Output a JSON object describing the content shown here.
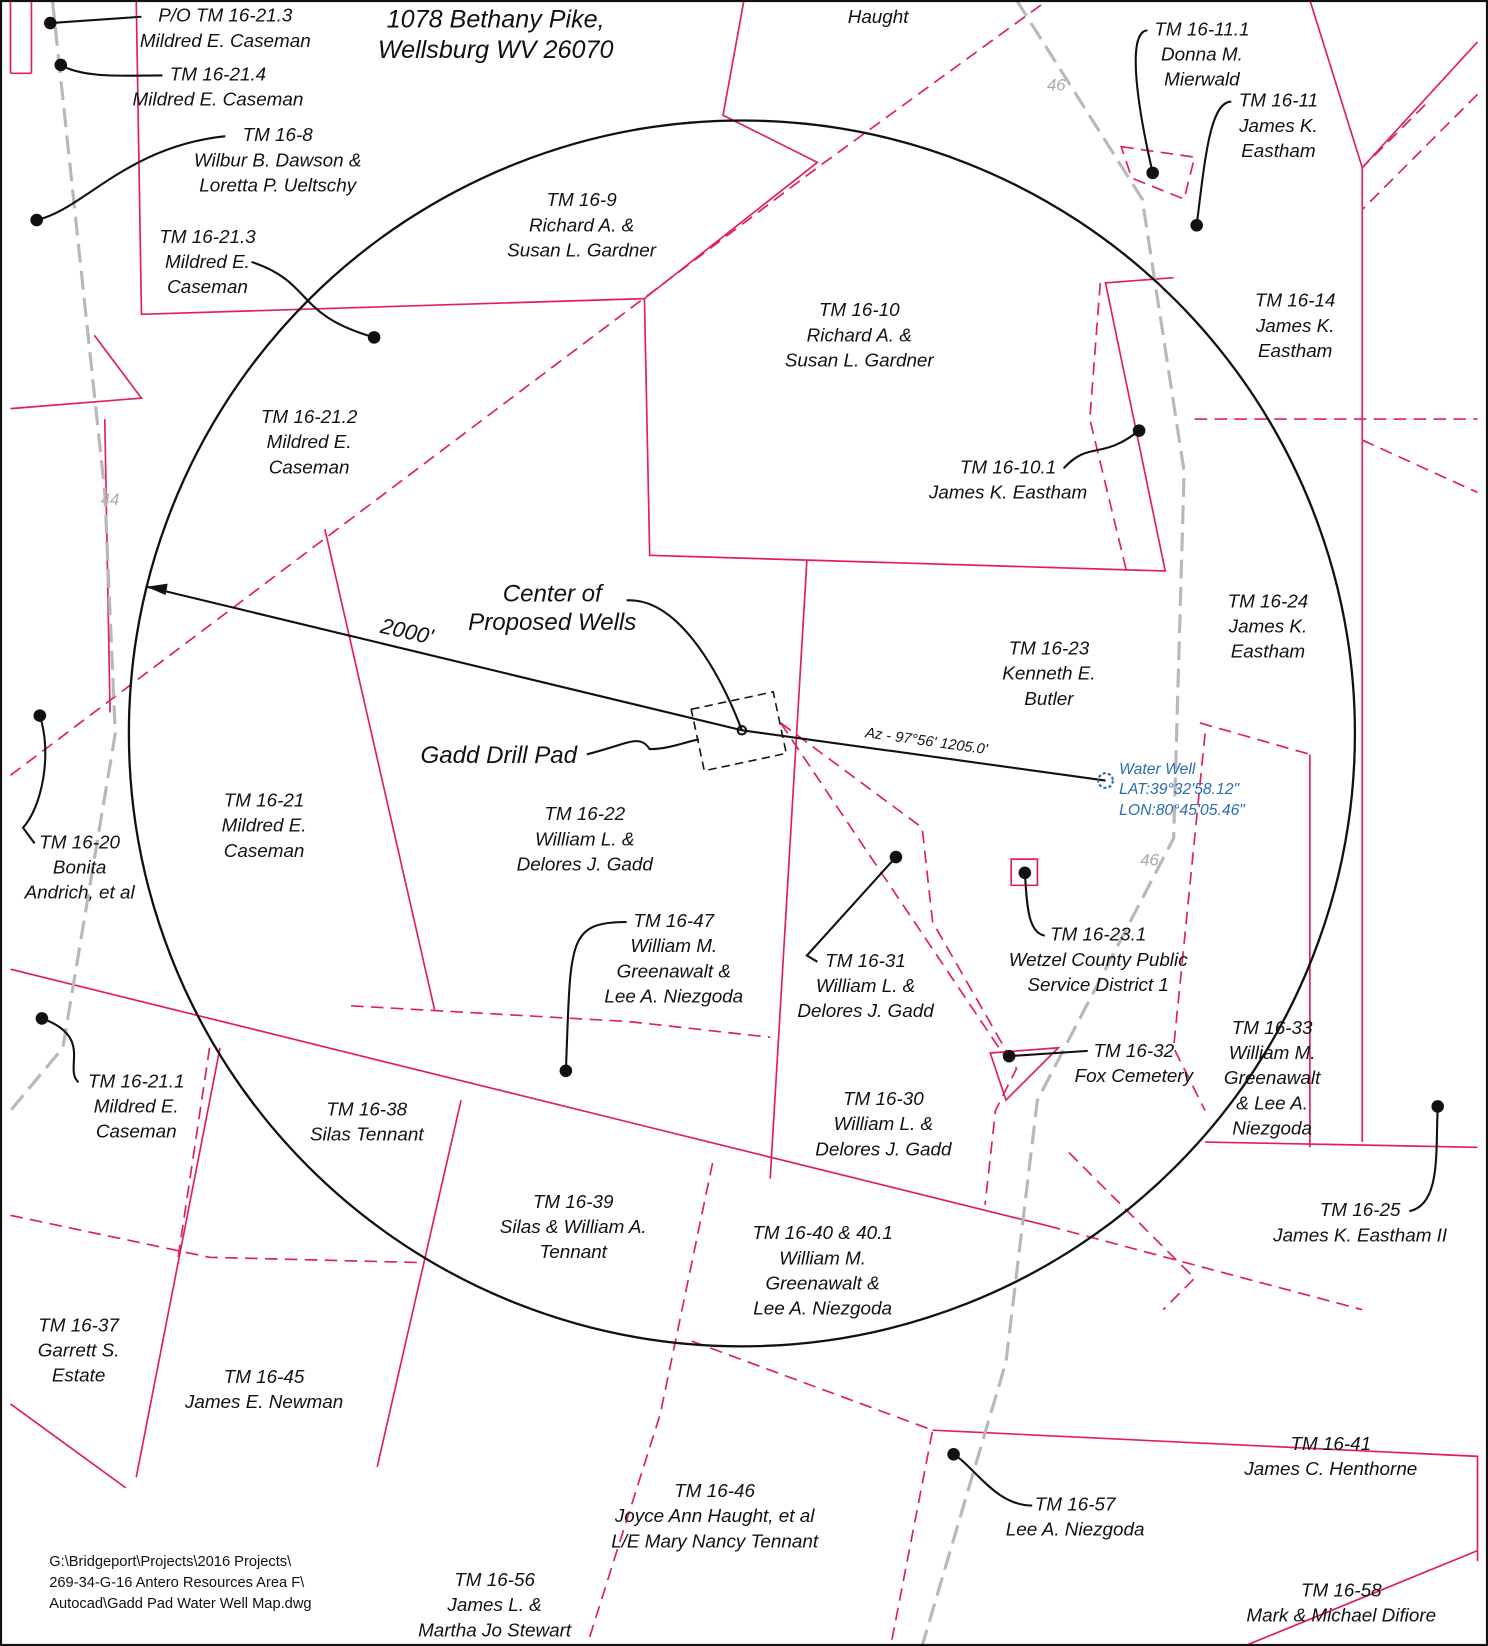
{
  "address": [
    "1078 Bethany Pike,",
    "Wellsburg WV 26070"
  ],
  "top_label": "Haught",
  "parcels": [
    {
      "lines": [
        "P/O TM 16-21.3",
        "Mildred E. Caseman"
      ]
    },
    {
      "lines": [
        "TM 16-21.4",
        "Mildred E. Caseman"
      ]
    },
    {
      "lines": [
        "TM 16-8",
        "Wilbur B. Dawson &",
        "Loretta P. Ueltschy"
      ]
    },
    {
      "lines": [
        "TM 16-9",
        "Richard A. &",
        "Susan L. Gardner"
      ]
    },
    {
      "lines": [
        "TM 16-21.3",
        "Mildred E.",
        "Caseman"
      ]
    },
    {
      "lines": [
        "TM 16-10",
        "Richard A. &",
        "Susan L. Gardner"
      ]
    },
    {
      "lines": [
        "TM 16-11.1",
        "Donna M.",
        "Mierwald"
      ]
    },
    {
      "lines": [
        "TM 16-11",
        "James K.",
        "Eastham"
      ]
    },
    {
      "lines": [
        "TM 16-14",
        "James K.",
        "Eastham"
      ]
    },
    {
      "lines": [
        "TM 16-21.2",
        "Mildred E.",
        "Caseman"
      ]
    },
    {
      "lines": [
        "TM 16-10.1",
        "James K. Eastham"
      ]
    },
    {
      "lines": [
        "TM 16-24",
        "James K.",
        "Eastham"
      ]
    },
    {
      "lines": [
        "TM 16-23",
        "Kenneth E.",
        "Butler"
      ]
    },
    {
      "lines": [
        "TM 16-21",
        "Mildred E.",
        "Caseman"
      ]
    },
    {
      "lines": [
        "TM 16-22",
        "William L. &",
        "Delores J. Gadd"
      ]
    },
    {
      "lines": [
        "TM 16-20",
        "Bonita",
        "Andrich, et al"
      ]
    },
    {
      "lines": [
        "TM 16-47",
        "William M.",
        "Greenawalt &",
        "Lee A. Niezgoda"
      ]
    },
    {
      "lines": [
        "TM 16-31",
        "William L. &",
        "Delores J. Gadd"
      ]
    },
    {
      "lines": [
        "TM 16-23.1",
        "Wetzel County Public",
        "Service District 1"
      ]
    },
    {
      "lines": [
        "TM 16-33",
        "William M.",
        "Greenawalt",
        "& Lee A.",
        "Niezgoda"
      ]
    },
    {
      "lines": [
        "TM 16-32",
        "Fox Cemetery"
      ]
    },
    {
      "lines": [
        "TM 16-21.1",
        "Mildred E.",
        "Caseman"
      ]
    },
    {
      "lines": [
        "TM 16-38",
        "Silas Tennant"
      ]
    },
    {
      "lines": [
        "TM 16-30",
        "William L. &",
        "Delores J. Gadd"
      ]
    },
    {
      "lines": [
        "TM 16-39",
        "Silas & William A.",
        "Tennant"
      ]
    },
    {
      "lines": [
        "TM 16-25",
        "James K. Eastham II"
      ]
    },
    {
      "lines": [
        "TM 16-40 & 40.1",
        "William M.",
        "Greenawalt &",
        "Lee A. Niezgoda"
      ]
    },
    {
      "lines": [
        "TM 16-37",
        "Garrett S.",
        "Estate"
      ]
    },
    {
      "lines": [
        "TM 16-45",
        "James E. Newman"
      ]
    },
    {
      "lines": [
        "TM 16-41",
        "James C. Henthorne"
      ]
    },
    {
      "lines": [
        "TM 16-57",
        "Lee A. Niezgoda"
      ]
    },
    {
      "lines": [
        "TM 16-46",
        "Joyce Ann Haught, et al",
        "L/E Mary Nancy Tennant"
      ]
    },
    {
      "lines": [
        "TM 16-56",
        "James L. &",
        "Martha Jo Stewart"
      ]
    },
    {
      "lines": [
        "TM 16-58",
        "Mark & Michael Difiore"
      ]
    }
  ],
  "center_label": [
    "Center of",
    "Proposed Wells"
  ],
  "pad_label": "Gadd Drill Pad",
  "radius_label": "2000'",
  "azimuth_label": "Az - 97°56' 1205.0'",
  "water_well": [
    "Water Well",
    "LAT:39°32'58.12\"",
    "LON:80°45'05.46\""
  ],
  "road_labels": [
    "46",
    "44",
    "46"
  ],
  "file_path": [
    "G:\\Bridgeport\\Projects\\2016 Projects\\",
    "269-34-G-16 Antero Resources Area F\\",
    "Autocad\\Gadd Pad Water Well Map.dwg"
  ]
}
